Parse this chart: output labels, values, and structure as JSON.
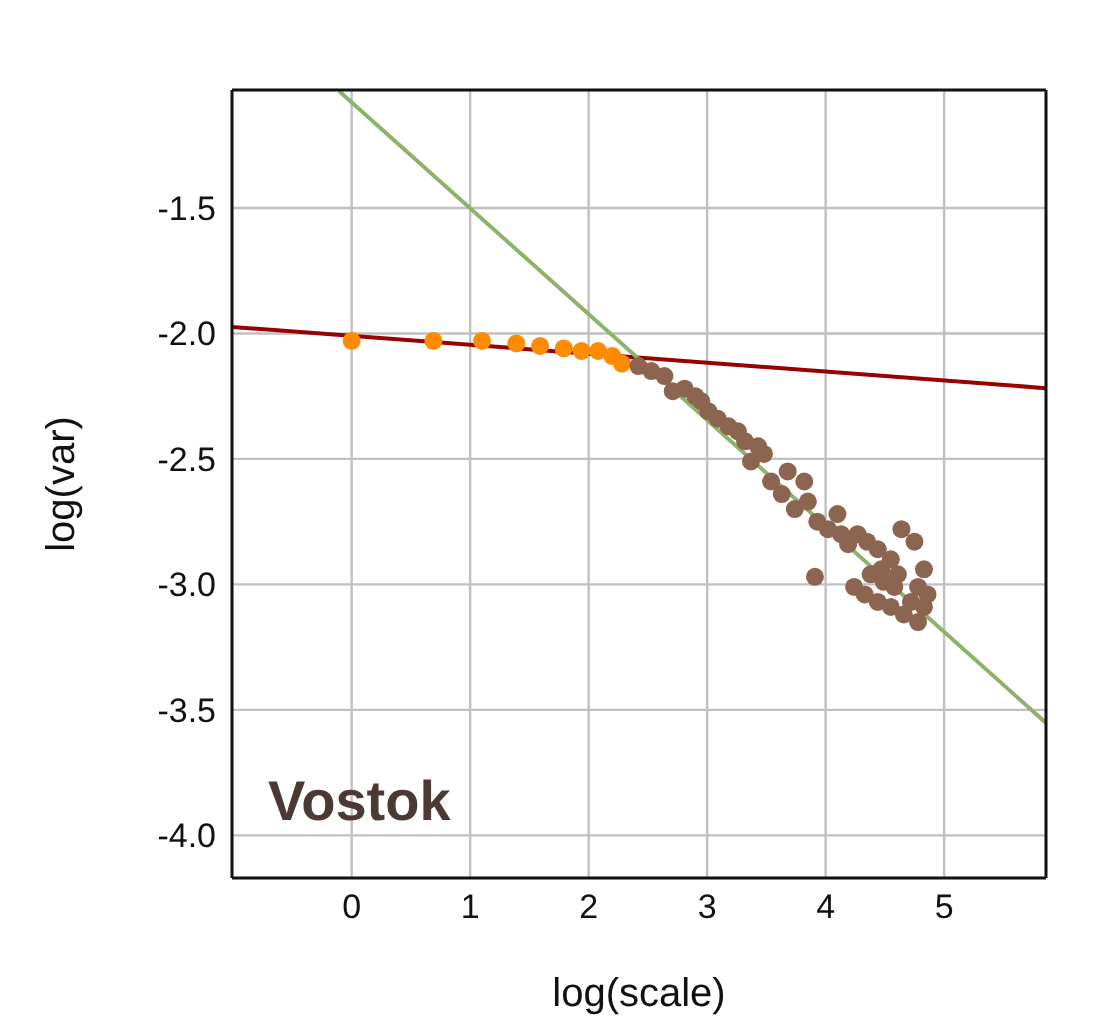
{
  "chart_data": {
    "type": "scatter",
    "xlabel": "log(scale)",
    "ylabel": "log(var)",
    "xlim": [
      -1.01,
      5.86
    ],
    "ylim": [
      -4.17,
      -1.03
    ],
    "xticks": [
      0,
      1,
      2,
      3,
      4,
      5
    ],
    "yticks": [
      {
        "value": -4,
        "label": "-4.0"
      },
      -3.5,
      {
        "value": -3,
        "label": "-3.0"
      },
      -2.5,
      {
        "value": -2,
        "label": "-2.0"
      },
      -1.5
    ],
    "grid": true,
    "marker": "circle",
    "annotations": [
      "Vostok"
    ],
    "series": [
      {
        "color": "#ff8c00",
        "x": [
          0,
          0.69,
          1.1,
          1.39,
          1.59,
          1.79,
          1.94,
          2.08,
          2.2,
          2.28
        ],
        "values": [
          -2.03,
          -2.03,
          -2.03,
          -2.04,
          -2.05,
          -2.06,
          -2.07,
          -2.07,
          -2.09,
          -2.12
        ]
      },
      {
        "color": "#8b6550",
        "x": [
          2.42,
          2.53,
          2.64,
          2.71,
          2.81,
          2.9,
          2.95,
          3.01,
          3.09,
          3.18,
          3.26,
          3.32,
          3.43,
          3.37,
          3.48,
          3.54,
          3.63,
          3.68,
          3.82,
          3.74,
          3.85,
          3.93,
          4.02,
          4.1,
          4.13,
          4.19,
          4.27,
          4.35,
          4.44,
          3.91,
          4.24,
          4.33,
          4.38,
          4.47,
          4.55,
          4.64,
          4.75,
          4.78,
          4.83,
          4.86,
          4.78,
          4.66,
          4.55,
          4.44,
          4.58,
          4.72,
          4.61,
          4.49,
          4.83
        ],
        "values": [
          -2.13,
          -2.15,
          -2.17,
          -2.23,
          -2.22,
          -2.25,
          -2.27,
          -2.31,
          -2.34,
          -2.37,
          -2.39,
          -2.43,
          -2.45,
          -2.51,
          -2.48,
          -2.59,
          -2.64,
          -2.55,
          -2.59,
          -2.7,
          -2.67,
          -2.75,
          -2.78,
          -2.72,
          -2.8,
          -2.84,
          -2.8,
          -2.83,
          -2.86,
          -2.97,
          -3.01,
          -3.04,
          -2.96,
          -2.94,
          -2.9,
          -2.78,
          -2.83,
          -3.01,
          -2.94,
          -3.04,
          -3.15,
          -3.12,
          -3.09,
          -3.07,
          -3.01,
          -3.07,
          -2.96,
          -2.99,
          -3.09
        ]
      },
      {
        "type": "line",
        "color": "#990000",
        "marker": "none",
        "x": [
          -1.01,
          5.86
        ],
        "values": [
          -1.974,
          -2.218
        ]
      },
      {
        "type": "line",
        "color": "#8db36a",
        "marker": "none",
        "x": [
          -0.107,
          5.86
        ],
        "values": [
          -1.034,
          -3.552
        ]
      }
    ]
  }
}
